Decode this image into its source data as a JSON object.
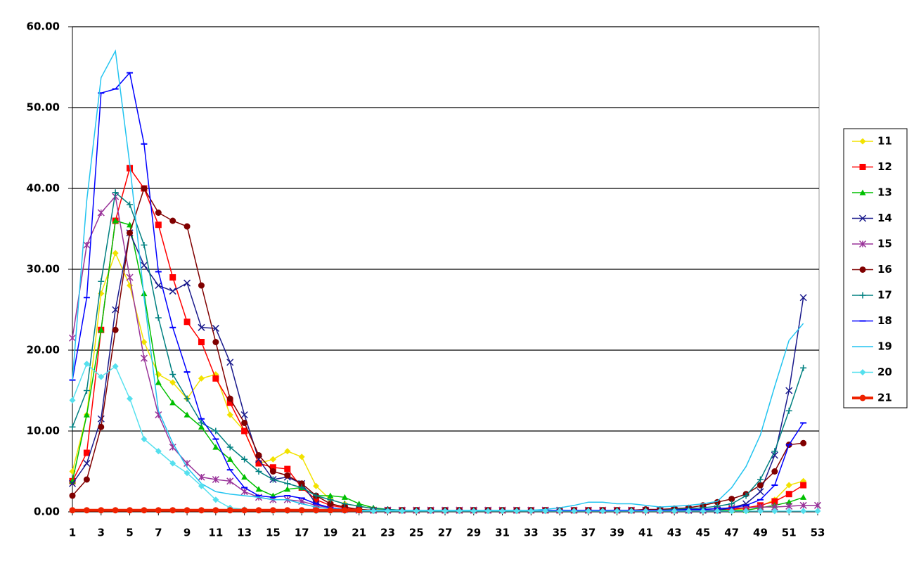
{
  "chart_data": {
    "type": "line",
    "x": [
      1,
      2,
      3,
      4,
      5,
      6,
      7,
      8,
      9,
      10,
      11,
      12,
      13,
      14,
      15,
      16,
      17,
      18,
      19,
      20,
      21,
      22,
      23,
      24,
      25,
      26,
      27,
      28,
      29,
      30,
      31,
      32,
      33,
      34,
      35,
      36,
      37,
      38,
      39,
      40,
      41,
      42,
      43,
      44,
      45,
      46,
      47,
      48,
      49,
      50,
      51,
      52,
      53
    ],
    "xlim": [
      1,
      53
    ],
    "xticks": [
      1,
      3,
      5,
      7,
      9,
      11,
      13,
      15,
      17,
      19,
      21,
      23,
      25,
      27,
      29,
      31,
      33,
      35,
      37,
      39,
      41,
      43,
      45,
      47,
      49,
      51,
      53
    ],
    "ylim": [
      0,
      60
    ],
    "yticks": [
      {
        "value": 0,
        "label": "0.00"
      },
      {
        "value": 10,
        "label": "10.00"
      },
      {
        "value": 20,
        "label": "20.00"
      },
      {
        "value": 30,
        "label": "30.00"
      },
      {
        "value": 40,
        "label": "40.00"
      },
      {
        "value": 50,
        "label": "50.00"
      },
      {
        "value": 60,
        "label": "60.00"
      }
    ],
    "grid": true,
    "legend": "right",
    "series": [
      {
        "name": "11",
        "color": "#f2e200",
        "marker": "diamond",
        "values": [
          5,
          12,
          27,
          32,
          28,
          21,
          17,
          16,
          14,
          16.5,
          17,
          12,
          10,
          6,
          6.5,
          7.5,
          6.8,
          3.2,
          1.5,
          1,
          0.7,
          0.4,
          0.2,
          0.2,
          0.2,
          0.2,
          0.2,
          0.2,
          0.2,
          0.2,
          0.2,
          0.2,
          0.2,
          0.2,
          0.2,
          0.2,
          0.2,
          0.2,
          0.2,
          0.2,
          0.2,
          0.2,
          0.2,
          0.2,
          0.2,
          0.2,
          0.2,
          0.4,
          0.7,
          1.5,
          3.3,
          3.8,
          null
        ]
      },
      {
        "name": "12",
        "color": "#ff0000",
        "marker": "square",
        "values": [
          3.8,
          7.3,
          22.5,
          36,
          42.5,
          40,
          35.5,
          29,
          23.5,
          21,
          16.5,
          13.5,
          10,
          6,
          5.5,
          5.3,
          3,
          1.5,
          0.8,
          0.5,
          0.3,
          0.2,
          0.2,
          0.2,
          0.2,
          0.2,
          0.2,
          0.2,
          0.2,
          0.2,
          0.2,
          0.2,
          0.2,
          0.2,
          0.2,
          0.2,
          0.2,
          0.2,
          0.2,
          0.2,
          0.2,
          0.2,
          0.2,
          0.2,
          0.2,
          0.2,
          0.3,
          0.5,
          0.8,
          1.3,
          2.2,
          3.3,
          null
        ]
      },
      {
        "name": "13",
        "color": "#00c000",
        "marker": "triangle",
        "values": [
          3.8,
          12,
          22.5,
          36,
          35.5,
          27,
          16,
          13.5,
          12,
          10.5,
          8,
          6.5,
          4.3,
          2.8,
          2,
          2.8,
          3,
          2,
          2,
          1.8,
          1,
          0.5,
          0.3,
          0.2,
          0.2,
          0.2,
          0.2,
          0.2,
          0.2,
          0.2,
          0.2,
          0.2,
          0.2,
          0.2,
          0.2,
          0.2,
          0.2,
          0.2,
          0.2,
          0.2,
          0.2,
          0.2,
          0.2,
          0.2,
          0.2,
          0.2,
          0.2,
          0.2,
          0.5,
          0.8,
          1.2,
          1.8,
          null
        ]
      },
      {
        "name": "14",
        "color": "#1a1a8c",
        "marker": "x",
        "values": [
          3.5,
          6,
          11.5,
          25,
          34.5,
          30.5,
          28,
          27.3,
          28.3,
          22.8,
          22.7,
          18.5,
          12,
          6.5,
          4,
          4.3,
          3.5,
          1,
          0.5,
          0.3,
          0.2,
          0.2,
          0.2,
          0.2,
          0.2,
          0.2,
          0.2,
          0.2,
          0.2,
          0.2,
          0.2,
          0.2,
          0.2,
          0.2,
          0.2,
          0.2,
          0.2,
          0.2,
          0.2,
          0.2,
          0.2,
          0.2,
          0.2,
          0.2,
          0.2,
          0.2,
          0.5,
          1,
          2.5,
          7,
          15,
          26.5,
          null
        ]
      },
      {
        "name": "15",
        "color": "#993399",
        "marker": "star",
        "values": [
          21.5,
          33,
          37,
          39,
          29,
          19,
          12,
          8,
          6,
          4.3,
          4,
          3.8,
          2.5,
          1.8,
          1.5,
          1.5,
          1.3,
          0.8,
          0.5,
          0.3,
          0.2,
          0.2,
          0.2,
          0.2,
          0.2,
          0.2,
          0.2,
          0.2,
          0.2,
          0.2,
          0.2,
          0.2,
          0.2,
          0.2,
          0.2,
          0.2,
          0.2,
          0.2,
          0.2,
          0.2,
          0.2,
          0.2,
          0.2,
          0.3,
          0.3,
          0.4,
          0.5,
          0.5,
          0.6,
          0.6,
          0.7,
          0.8,
          0.8
        ]
      },
      {
        "name": "16",
        "color": "#800000",
        "marker": "circle",
        "values": [
          2,
          4,
          10.5,
          22.5,
          34.5,
          40,
          37,
          36,
          35.3,
          28,
          21,
          14,
          11,
          7,
          5,
          4.5,
          3.5,
          2,
          1,
          0.6,
          0.3,
          0.2,
          0.2,
          0.2,
          0.2,
          0.2,
          0.2,
          0.2,
          0.2,
          0.2,
          0.2,
          0.2,
          0.2,
          0.2,
          0.2,
          0.2,
          0.2,
          0.2,
          0.2,
          0.2,
          0.3,
          0.3,
          0.4,
          0.5,
          0.8,
          1.2,
          1.6,
          2.2,
          3.3,
          5,
          8.3,
          8.5,
          null
        ]
      },
      {
        "name": "17",
        "color": "#008080",
        "marker": "plus",
        "values": [
          10.5,
          15,
          28.5,
          39.5,
          38,
          33,
          24,
          17,
          14,
          11,
          10,
          8,
          6.5,
          5,
          4,
          3.5,
          3,
          2,
          1.5,
          1,
          0.7,
          0.4,
          0.3,
          0.2,
          0.2,
          0.2,
          0.2,
          0.2,
          0.2,
          0.2,
          0.2,
          0.2,
          0.2,
          0.2,
          0.2,
          0.2,
          0.2,
          0.2,
          0.2,
          0.2,
          0.2,
          0.2,
          0.3,
          0.4,
          0.5,
          0.7,
          1,
          2,
          4,
          7.5,
          12.5,
          17.8,
          null
        ]
      },
      {
        "name": "18",
        "color": "#0000ff",
        "marker": "dash",
        "values": [
          16.3,
          26.5,
          51.8,
          52.3,
          54.3,
          45.5,
          29.7,
          22.8,
          17.3,
          11.5,
          9,
          5.2,
          3,
          2,
          1.8,
          2,
          1.7,
          1,
          0.5,
          0.3,
          0.2,
          0.2,
          0.2,
          0.2,
          0.2,
          0.2,
          0.2,
          0.2,
          0.2,
          0.2,
          0.2,
          0.2,
          0.2,
          0.2,
          0.2,
          0.2,
          0.2,
          0.2,
          0.2,
          0.2,
          0.2,
          0.2,
          0.2,
          0.3,
          0.3,
          0.4,
          0.5,
          0.8,
          1.5,
          3.3,
          8.3,
          11,
          null
        ]
      },
      {
        "name": "19",
        "color": "#22c4f0",
        "marker": "none",
        "values": [
          16.3,
          38.5,
          53.7,
          57,
          43,
          26.5,
          12.5,
          8.5,
          5.5,
          3.5,
          2.5,
          2.2,
          2,
          1.8,
          1.5,
          1.5,
          1,
          0.6,
          0.4,
          0.3,
          0.2,
          0.2,
          0.2,
          0.2,
          0.2,
          0.2,
          0.2,
          0.2,
          0.2,
          0.2,
          0.2,
          0.2,
          0.2,
          0.3,
          0.5,
          0.8,
          1.2,
          1.2,
          1,
          1,
          0.8,
          0.6,
          0.7,
          0.8,
          1,
          1.3,
          3,
          5.6,
          9.5,
          15.5,
          21.2,
          23.3,
          null
        ]
      },
      {
        "name": "20",
        "color": "#55e0ee",
        "marker": "diamond",
        "values": [
          13.8,
          18.3,
          16.7,
          18,
          14,
          9,
          7.5,
          6,
          4.8,
          3.2,
          1.5,
          0.5,
          0.3,
          0.2,
          0.1,
          0.1,
          0.1,
          0.1,
          0.1,
          0.1,
          0.1,
          0.1,
          0.1,
          0.1,
          0.1,
          0.1,
          0.1,
          0.1,
          0.1,
          0.1,
          0.1,
          0.1,
          0.1,
          0.1,
          0.1,
          0.1,
          0.1,
          0.1,
          0.1,
          0.1,
          0.1,
          0.1,
          0.1,
          0.1,
          0.1,
          0.1,
          0.1,
          0.1,
          0.1,
          0.1,
          0.1,
          0.1,
          0.1
        ]
      },
      {
        "name": "21",
        "color": "#ee2200",
        "marker": "circle",
        "width": 4,
        "values": [
          0.2,
          0.2,
          0.2,
          0.2,
          0.2,
          0.2,
          0.2,
          0.2,
          0.2,
          0.2,
          0.2,
          0.2,
          0.2,
          0.2,
          0.2,
          0.2,
          0.2,
          0.2,
          0.2,
          0.2,
          0.2,
          null,
          null,
          null,
          null,
          null,
          null,
          null,
          null,
          null,
          null,
          null,
          null,
          null,
          null,
          null,
          null,
          null,
          null,
          null,
          null,
          null,
          null,
          null,
          null,
          null,
          null,
          null,
          null,
          null,
          null,
          null,
          null
        ]
      }
    ]
  }
}
